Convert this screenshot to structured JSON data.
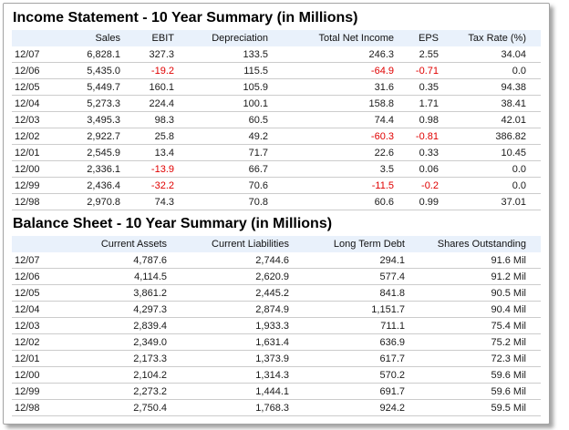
{
  "income_statement": {
    "title": "Income Statement - 10 Year Summary (in Millions)",
    "columns": [
      "",
      "Sales",
      "EBIT",
      "Depreciation",
      "Total Net Income",
      "EPS",
      "Tax Rate (%)"
    ],
    "rows": [
      {
        "date": "12/07",
        "values": [
          "6,828.1",
          "327.3",
          "133.5",
          "246.3",
          "2.55",
          "34.04"
        ]
      },
      {
        "date": "12/06",
        "values": [
          "5,435.0",
          "-19.2",
          "115.5",
          "-64.9",
          "-0.71",
          "0.0"
        ]
      },
      {
        "date": "12/05",
        "values": [
          "5,449.7",
          "160.1",
          "105.9",
          "31.6",
          "0.35",
          "94.38"
        ]
      },
      {
        "date": "12/04",
        "values": [
          "5,273.3",
          "224.4",
          "100.1",
          "158.8",
          "1.71",
          "38.41"
        ]
      },
      {
        "date": "12/03",
        "values": [
          "3,495.3",
          "98.3",
          "60.5",
          "74.4",
          "0.98",
          "42.01"
        ]
      },
      {
        "date": "12/02",
        "values": [
          "2,922.7",
          "25.8",
          "49.2",
          "-60.3",
          "-0.81",
          "386.82"
        ]
      },
      {
        "date": "12/01",
        "values": [
          "2,545.9",
          "13.4",
          "71.7",
          "22.6",
          "0.33",
          "10.45"
        ]
      },
      {
        "date": "12/00",
        "values": [
          "2,336.1",
          "-13.9",
          "66.7",
          "3.5",
          "0.06",
          "0.0"
        ]
      },
      {
        "date": "12/99",
        "values": [
          "2,436.4",
          "-32.2",
          "70.6",
          "-11.5",
          "-0.2",
          "0.0"
        ]
      },
      {
        "date": "12/98",
        "values": [
          "2,970.8",
          "74.3",
          "70.8",
          "60.6",
          "0.99",
          "37.01"
        ]
      }
    ]
  },
  "balance_sheet": {
    "title": "Balance Sheet - 10 Year Summary (in Millions)",
    "columns": [
      "",
      "Current Assets",
      "Current Liabilities",
      "Long Term Debt",
      "Shares Outstanding"
    ],
    "rows": [
      {
        "date": "12/07",
        "values": [
          "4,787.6",
          "2,744.6",
          "294.1",
          "91.6 Mil"
        ]
      },
      {
        "date": "12/06",
        "values": [
          "4,114.5",
          "2,620.9",
          "577.4",
          "91.2 Mil"
        ]
      },
      {
        "date": "12/05",
        "values": [
          "3,861.2",
          "2,445.2",
          "841.8",
          "90.5 Mil"
        ]
      },
      {
        "date": "12/04",
        "values": [
          "4,297.3",
          "2,874.9",
          "1,151.7",
          "90.4 Mil"
        ]
      },
      {
        "date": "12/03",
        "values": [
          "2,839.4",
          "1,933.3",
          "711.1",
          "75.4 Mil"
        ]
      },
      {
        "date": "12/02",
        "values": [
          "2,349.0",
          "1,631.4",
          "636.9",
          "75.2 Mil"
        ]
      },
      {
        "date": "12/01",
        "values": [
          "2,173.3",
          "1,373.9",
          "617.7",
          "72.3 Mil"
        ]
      },
      {
        "date": "12/00",
        "values": [
          "2,104.2",
          "1,314.3",
          "570.2",
          "59.6 Mil"
        ]
      },
      {
        "date": "12/99",
        "values": [
          "2,273.2",
          "1,444.1",
          "691.7",
          "59.6 Mil"
        ]
      },
      {
        "date": "12/98",
        "values": [
          "2,750.4",
          "1,768.3",
          "924.2",
          "59.5 Mil"
        ]
      }
    ]
  },
  "colors": {
    "negative_value": "#e00000",
    "header_row_bg": "#e9f1fb",
    "row_divider": "#cccccc",
    "panel_border": "#a3a3a3"
  }
}
